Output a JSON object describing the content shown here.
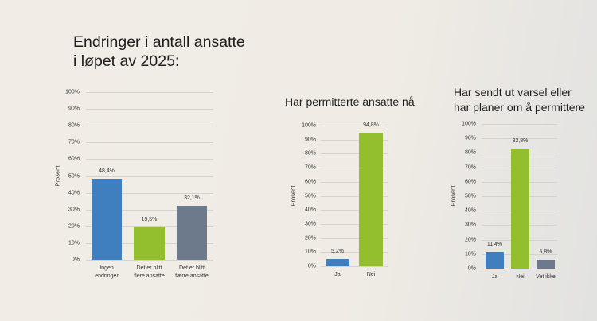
{
  "page": {
    "title": "Endringer i antall ansatte\ni løpet av 2025:"
  },
  "colors": {
    "blue": "#3f7fbf",
    "green": "#93bf2e",
    "gray": "#6c7a8c",
    "grid": "#d6d3cd"
  },
  "chart_data": [
    {
      "type": "bar",
      "title": "Endringer i antall ansatte i løpet av 2025:",
      "xlabel": "",
      "ylabel": "Prosent",
      "ylim": [
        0,
        100
      ],
      "yticks": [
        "0%",
        "10%",
        "20%",
        "30%",
        "40%",
        "50%",
        "60%",
        "70%",
        "80%",
        "90%",
        "100%"
      ],
      "grid": true,
      "categories": [
        "Ingen\nendringer",
        "Det er blitt\nflere ansatte",
        "Det er blitt\nfærre ansatte"
      ],
      "values": [
        48.4,
        19.5,
        32.1
      ],
      "value_labels": [
        "48,4%",
        "19,5%",
        "32,1%"
      ],
      "bar_colors": [
        "#3f7fbf",
        "#93bf2e",
        "#6c7a8c"
      ]
    },
    {
      "type": "bar",
      "title": "Har permitterte ansatte nå",
      "xlabel": "",
      "ylabel": "Prosent",
      "ylim": [
        0,
        100
      ],
      "yticks": [
        "0%",
        "10%",
        "20%",
        "30%",
        "40%",
        "50%",
        "60%",
        "70%",
        "80%",
        "90%",
        "100%"
      ],
      "grid": true,
      "categories": [
        "Ja",
        "Nei"
      ],
      "values": [
        5.2,
        94.8
      ],
      "value_labels": [
        "5,2%",
        "94,8%"
      ],
      "bar_colors": [
        "#3f7fbf",
        "#93bf2e"
      ]
    },
    {
      "type": "bar",
      "title": "Har sendt ut varsel eller\nhar planer om å permittere",
      "xlabel": "",
      "ylabel": "Prosent",
      "ylim": [
        0,
        100
      ],
      "yticks": [
        "0%",
        "10%",
        "20%",
        "30%",
        "40%",
        "50%",
        "60%",
        "70%",
        "80%",
        "90%",
        "100%"
      ],
      "grid": true,
      "categories": [
        "Ja",
        "Nei",
        "Vet ikke"
      ],
      "values": [
        11.4,
        82.8,
        5.8
      ],
      "value_labels": [
        "11,4%",
        "82,8%",
        "5,8%"
      ],
      "bar_colors": [
        "#3f7fbf",
        "#93bf2e",
        "#6c7a8c"
      ]
    }
  ]
}
